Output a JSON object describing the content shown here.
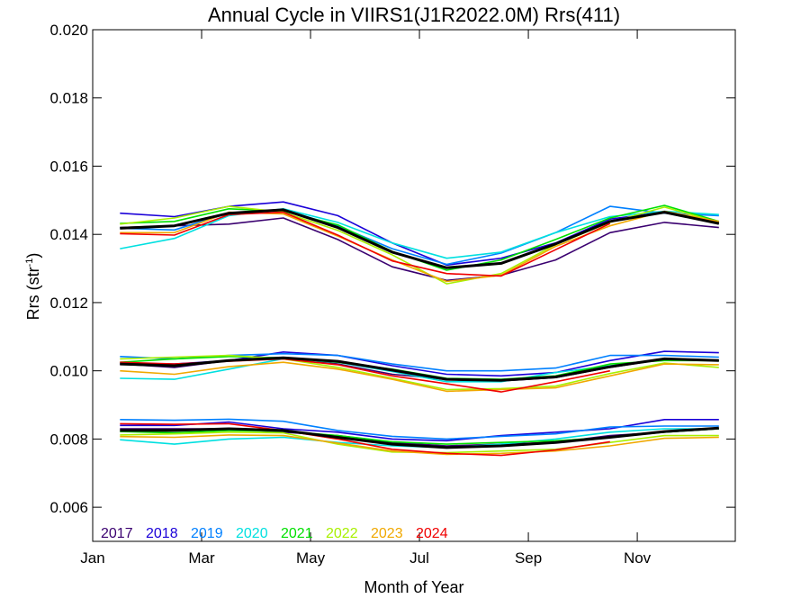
{
  "chart_data": {
    "type": "line",
    "title": "Annual Cycle in VIIRS1(J1R2022.0M) Rrs(411)",
    "xlabel": "Month of Year",
    "ylabel_main": "Rrs (str",
    "ylabel_sup": "-1",
    "ylabel_close": ")",
    "xlim": [
      1,
      12.8
    ],
    "ylim": [
      0.005,
      0.02
    ],
    "grid": false,
    "legend_position": "bottom-left",
    "x_ticks": [
      {
        "value": 1,
        "label": "Jan"
      },
      {
        "value": 3,
        "label": "Mar"
      },
      {
        "value": 5,
        "label": "May"
      },
      {
        "value": 7,
        "label": "Jul"
      },
      {
        "value": 9,
        "label": "Sep"
      },
      {
        "value": 11,
        "label": "Nov"
      }
    ],
    "y_ticks": [
      {
        "value": 0.006,
        "label": "0.006"
      },
      {
        "value": 0.008,
        "label": "0.008"
      },
      {
        "value": 0.01,
        "label": "0.010"
      },
      {
        "value": 0.012,
        "label": "0.012"
      },
      {
        "value": 0.014,
        "label": "0.014"
      },
      {
        "value": 0.016,
        "label": "0.016"
      },
      {
        "value": 0.018,
        "label": "0.018"
      },
      {
        "value": 0.02,
        "label": "0.020"
      }
    ],
    "series": [
      {
        "name": "2017",
        "color": "#3a0070",
        "groups": [
          {
            "x": [
              1.5,
              2.5,
              3.5,
              4.5,
              5.5,
              6.5,
              7.5,
              8.5,
              9.5,
              10.5,
              11.5,
              12.5
            ],
            "y": [
              0.0142,
              0.01425,
              0.0143,
              0.01448,
              0.01385,
              0.01305,
              0.01265,
              0.0128,
              0.01325,
              0.01405,
              0.01435,
              0.0142
            ]
          },
          {
            "x": [
              1.5,
              2.5,
              3.5,
              4.5,
              5.5,
              6.5,
              7.5,
              8.5,
              9.5,
              10.5,
              11.5,
              12.5
            ],
            "y": [
              0.0102,
              0.0101,
              0.0103,
              0.01035,
              0.0102,
              0.0099,
              0.00975,
              0.0097,
              0.0098,
              0.0101,
              0.01035,
              0.0103
            ]
          },
          {
            "x": [
              1.5,
              2.5,
              3.5,
              4.5,
              5.5,
              6.5,
              7.5,
              8.5,
              9.5,
              10.5,
              11.5,
              12.5
            ],
            "y": [
              0.0083,
              0.0083,
              0.0083,
              0.0082,
              0.0081,
              0.0079,
              0.0078,
              0.00785,
              0.0079,
              0.0081,
              0.0082,
              0.0083
            ]
          }
        ]
      },
      {
        "name": "2018",
        "color": "#1a00d8",
        "groups": [
          {
            "x": [
              1.5,
              2.5,
              3.5,
              4.5,
              5.5,
              6.5,
              7.5,
              8.5,
              9.5,
              10.5,
              11.5,
              12.5
            ],
            "y": [
              0.01462,
              0.01452,
              0.01482,
              0.01495,
              0.01455,
              0.01375,
              0.0131,
              0.0133,
              0.01375,
              0.01445,
              0.01465,
              0.01432
            ]
          },
          {
            "x": [
              1.5,
              2.5,
              3.5,
              4.5,
              5.5,
              6.5,
              7.5,
              8.5,
              9.5,
              10.5,
              11.5,
              12.5
            ],
            "y": [
              0.0102,
              0.0102,
              0.0103,
              0.01055,
              0.01045,
              0.01015,
              0.0099,
              0.00985,
              0.00995,
              0.0103,
              0.01057,
              0.01053
            ]
          },
          {
            "x": [
              1.5,
              2.5,
              3.5,
              4.5,
              5.5,
              6.5,
              7.5,
              8.5,
              9.5,
              10.5,
              11.5,
              12.5
            ],
            "y": [
              0.0084,
              0.0084,
              0.0085,
              0.0083,
              0.0082,
              0.008,
              0.00795,
              0.0081,
              0.0082,
              0.0083,
              0.00857,
              0.00857
            ]
          }
        ]
      },
      {
        "name": "2019",
        "color": "#0080ff",
        "groups": [
          {
            "x": [
              1.5,
              2.5,
              3.5,
              4.5,
              5.5,
              6.5,
              7.5,
              8.5,
              9.5,
              10.5,
              11.5,
              12.5
            ],
            "y": [
              0.01418,
              0.01413,
              0.01462,
              0.01472,
              0.01425,
              0.01358,
              0.01312,
              0.01345,
              0.01405,
              0.01482,
              0.01462,
              0.01455
            ]
          },
          {
            "x": [
              1.5,
              2.5,
              3.5,
              4.5,
              5.5,
              6.5,
              7.5,
              8.5,
              9.5,
              10.5,
              11.5,
              12.5
            ],
            "y": [
              0.01042,
              0.01035,
              0.01045,
              0.0105,
              0.01045,
              0.0102,
              0.01,
              0.01,
              0.01008,
              0.01045,
              0.01045,
              0.0104
            ]
          },
          {
            "x": [
              1.5,
              2.5,
              3.5,
              4.5,
              5.5,
              6.5,
              7.5,
              8.5,
              9.5,
              10.5,
              11.5,
              12.5
            ],
            "y": [
              0.00857,
              0.00855,
              0.00858,
              0.00852,
              0.00825,
              0.00808,
              0.008,
              0.00808,
              0.00815,
              0.00835,
              0.00838,
              0.00838
            ]
          }
        ]
      },
      {
        "name": "2020",
        "color": "#00e0e0",
        "groups": [
          {
            "x": [
              1.5,
              2.5,
              3.5,
              4.5,
              5.5,
              6.5,
              7.5,
              8.5,
              9.5,
              10.5,
              11.5,
              12.5
            ],
            "y": [
              0.01358,
              0.01388,
              0.01455,
              0.01475,
              0.01435,
              0.01375,
              0.0133,
              0.01348,
              0.01405,
              0.01452,
              0.01468,
              0.01458
            ]
          },
          {
            "x": [
              1.5,
              2.5,
              3.5,
              4.5,
              5.5,
              6.5,
              7.5,
              8.5,
              9.5,
              10.5,
              11.5,
              12.5
            ],
            "y": [
              0.00978,
              0.00975,
              0.01005,
              0.01035,
              0.01025,
              0.00998,
              0.00968,
              0.00968,
              0.00995,
              0.01015,
              0.01035,
              0.0103
            ]
          },
          {
            "x": [
              1.5,
              2.5,
              3.5,
              4.5,
              5.5,
              6.5,
              7.5,
              8.5,
              9.5,
              10.5,
              11.5,
              12.5
            ],
            "y": [
              0.00798,
              0.00785,
              0.008,
              0.00805,
              0.0079,
              0.0078,
              0.00775,
              0.00785,
              0.008,
              0.0082,
              0.0083,
              0.0083
            ]
          }
        ]
      },
      {
        "name": "2021",
        "color": "#00e000",
        "groups": [
          {
            "x": [
              1.5,
              2.5,
              3.5,
              4.5,
              5.5,
              6.5,
              7.5,
              8.5,
              9.5,
              10.5,
              11.5,
              12.5
            ],
            "y": [
              0.01432,
              0.01438,
              0.01475,
              0.01468,
              0.01428,
              0.0135,
              0.01295,
              0.01325,
              0.01385,
              0.01448,
              0.01485,
              0.01438
            ]
          },
          {
            "x": [
              1.5,
              2.5,
              3.5,
              4.5,
              5.5,
              6.5,
              7.5,
              8.5,
              9.5,
              10.5,
              11.5,
              12.5
            ],
            "y": [
              0.01025,
              0.01035,
              0.01042,
              0.01038,
              0.01025,
              0.01005,
              0.00978,
              0.00975,
              0.00985,
              0.0102,
              0.0103,
              0.0103
            ]
          },
          {
            "x": [
              1.5,
              2.5,
              3.5,
              4.5,
              5.5,
              6.5,
              7.5,
              8.5,
              9.5,
              10.5,
              11.5,
              12.5
            ],
            "y": [
              0.00822,
              0.00818,
              0.00825,
              0.00823,
              0.0081,
              0.00792,
              0.00785,
              0.0079,
              0.00795,
              0.00805,
              0.0082,
              0.0083
            ]
          }
        ]
      },
      {
        "name": "2022",
        "color": "#a8f000",
        "groups": [
          {
            "x": [
              1.5,
              2.5,
              3.5,
              4.5,
              5.5,
              6.5,
              7.5,
              8.5,
              9.5,
              10.5,
              11.5,
              12.5
            ],
            "y": [
              0.0143,
              0.01448,
              0.01482,
              0.01465,
              0.01412,
              0.0134,
              0.01255,
              0.01285,
              0.0137,
              0.01435,
              0.0148,
              0.01435
            ]
          },
          {
            "x": [
              1.5,
              2.5,
              3.5,
              4.5,
              5.5,
              6.5,
              7.5,
              8.5,
              9.5,
              10.5,
              11.5,
              12.5
            ],
            "y": [
              0.01035,
              0.0104,
              0.01045,
              0.01035,
              0.0101,
              0.00978,
              0.00945,
              0.00948,
              0.00955,
              0.00992,
              0.01023,
              0.0101
            ]
          },
          {
            "x": [
              1.5,
              2.5,
              3.5,
              4.5,
              5.5,
              6.5,
              7.5,
              8.5,
              9.5,
              10.5,
              11.5,
              12.5
            ],
            "y": [
              0.00812,
              0.00815,
              0.0082,
              0.00818,
              0.00785,
              0.00762,
              0.0076,
              0.00765,
              0.0077,
              0.0079,
              0.0081,
              0.0081
            ]
          }
        ]
      },
      {
        "name": "2023",
        "color": "#f0a800",
        "groups": [
          {
            "x": [
              1.5,
              2.5,
              3.5,
              4.5,
              5.5,
              6.5,
              7.5,
              8.5,
              9.5,
              10.5,
              11.5,
              12.5
            ],
            "y": [
              0.01405,
              0.01405,
              0.01465,
              0.0146,
              0.01395,
              0.01325,
              0.01262,
              0.0128,
              0.01365,
              0.01425,
              0.01468,
              0.01438
            ]
          },
          {
            "x": [
              1.5,
              2.5,
              3.5,
              4.5,
              5.5,
              6.5,
              7.5,
              8.5,
              9.5,
              10.5,
              11.5,
              12.5
            ],
            "y": [
              0.01,
              0.0099,
              0.01012,
              0.01025,
              0.01005,
              0.00975,
              0.0094,
              0.00945,
              0.0095,
              0.00985,
              0.0102,
              0.01018
            ]
          },
          {
            "x": [
              1.5,
              2.5,
              3.5,
              4.5,
              5.5,
              6.5,
              7.5,
              8.5,
              9.5,
              10.5,
              11.5,
              12.5
            ],
            "y": [
              0.00807,
              0.00805,
              0.00812,
              0.0081,
              0.00788,
              0.00765,
              0.00755,
              0.00758,
              0.00765,
              0.0078,
              0.00802,
              0.00805
            ]
          }
        ]
      },
      {
        "name": "2024",
        "color": "#f00000",
        "groups": [
          {
            "x": [
              1.5,
              2.5,
              3.5,
              4.5,
              5.5,
              6.5,
              7.5,
              8.5,
              9.5,
              10.5
            ],
            "y": [
              0.01402,
              0.01398,
              0.01458,
              0.01465,
              0.01398,
              0.01322,
              0.01285,
              0.01278,
              0.01355,
              0.01432
            ]
          },
          {
            "x": [
              1.5,
              2.5,
              3.5,
              4.5,
              5.5,
              6.5,
              7.5,
              8.5,
              9.5,
              10.5
            ],
            "y": [
              0.01025,
              0.0102,
              0.01028,
              0.01035,
              0.01018,
              0.00985,
              0.00962,
              0.00938,
              0.00968,
              0.01
            ]
          },
          {
            "x": [
              1.5,
              2.5,
              3.5,
              4.5,
              5.5,
              6.5,
              7.5,
              8.5,
              9.5,
              10.5
            ],
            "y": [
              0.00845,
              0.00843,
              0.00845,
              0.00825,
              0.008,
              0.0077,
              0.00758,
              0.00752,
              0.00768,
              0.00792
            ]
          }
        ]
      },
      {
        "name": "",
        "color": "#000000",
        "width": 3,
        "groups": [
          {
            "x": [
              1.5,
              2.5,
              3.5,
              4.5,
              5.5,
              6.5,
              7.5,
              8.5,
              9.5,
              10.5,
              11.5,
              12.5
            ],
            "y": [
              0.01418,
              0.01425,
              0.01462,
              0.01472,
              0.0142,
              0.01348,
              0.01302,
              0.01315,
              0.01372,
              0.01438,
              0.01465,
              0.01432
            ]
          },
          {
            "x": [
              1.5,
              2.5,
              3.5,
              4.5,
              5.5,
              6.5,
              7.5,
              8.5,
              9.5,
              10.5,
              11.5,
              12.5
            ],
            "y": [
              0.0102,
              0.01015,
              0.0103,
              0.01038,
              0.01028,
              0.01002,
              0.00975,
              0.00972,
              0.00982,
              0.01012,
              0.01035,
              0.0103
            ]
          },
          {
            "x": [
              1.5,
              2.5,
              3.5,
              4.5,
              5.5,
              6.5,
              7.5,
              8.5,
              9.5,
              10.5,
              11.5,
              12.5
            ],
            "y": [
              0.00825,
              0.00825,
              0.0083,
              0.00825,
              0.00805,
              0.00785,
              0.00775,
              0.0078,
              0.0079,
              0.00805,
              0.00822,
              0.00832
            ]
          }
        ]
      }
    ]
  }
}
